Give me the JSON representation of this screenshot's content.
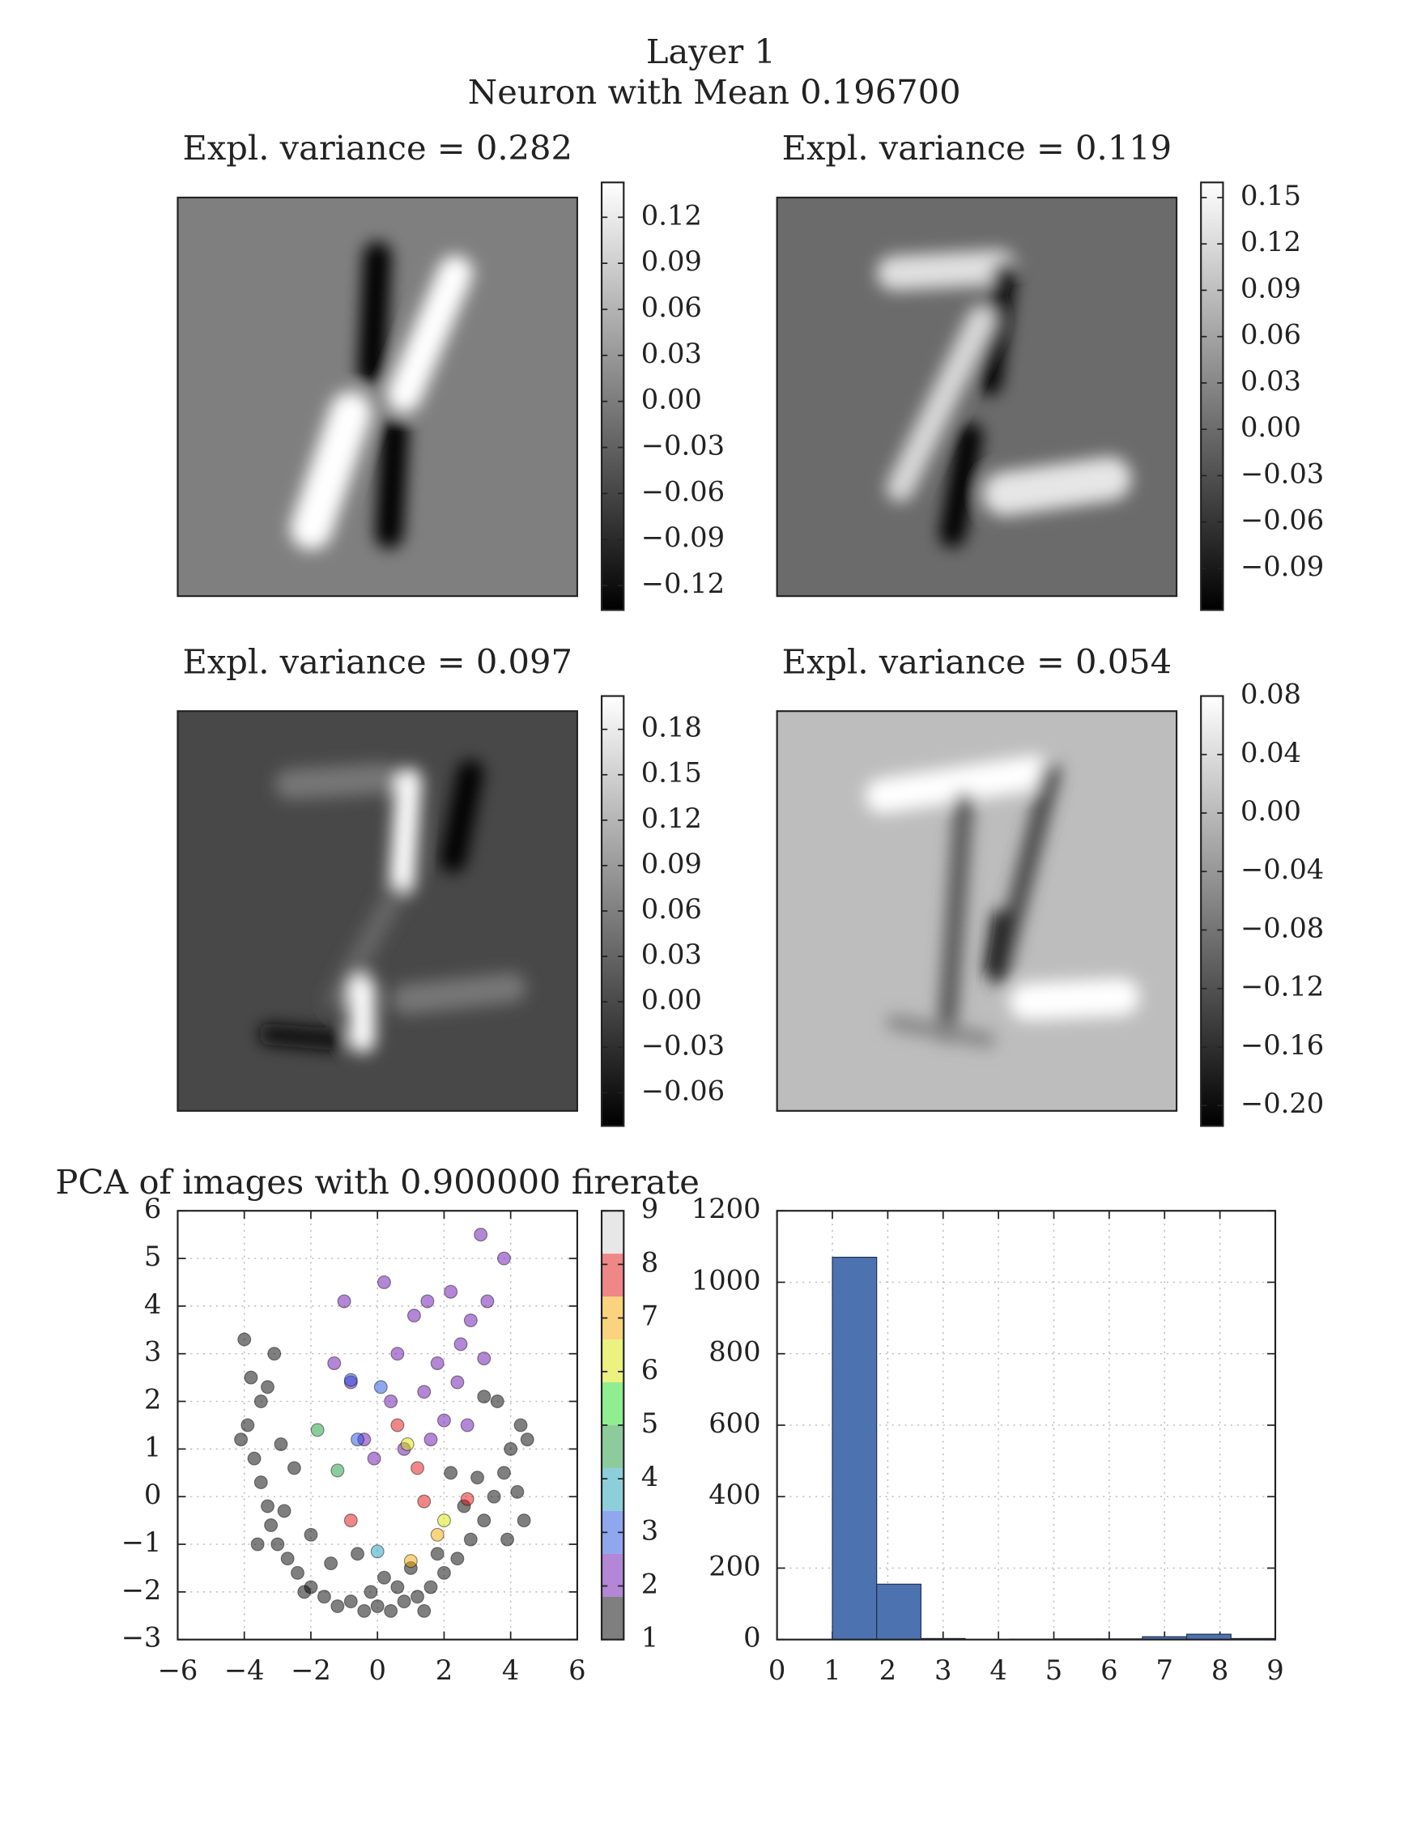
{
  "figure": {
    "title": "Layer 1",
    "subtitle": "Neuron with Mean 0.196700"
  },
  "chart_data": [
    {
      "type": "image",
      "title": "Expl. variance = 0.282",
      "clim": [
        -0.136,
        0.1427
      ],
      "cticks": [
        0.12,
        0.09,
        0.06,
        0.03,
        {
          "value": 0,
          "label": "0.00"
        },
        {
          "value": -0.03,
          "label": "−0.03"
        },
        {
          "value": -0.06,
          "label": "−0.06"
        },
        {
          "value": -0.09,
          "label": "−0.09"
        },
        {
          "value": -0.12,
          "label": "−0.12"
        }
      ]
    },
    {
      "type": "image",
      "title": "Expl. variance = 0.119",
      "clim": [
        -0.117,
        0.1598
      ],
      "cticks": [
        0.15,
        0.12,
        0.09,
        0.06,
        0.03,
        {
          "value": 0,
          "label": "0.00"
        },
        {
          "value": -0.03,
          "label": "−0.03"
        },
        {
          "value": -0.06,
          "label": "−0.06"
        },
        {
          "value": -0.09,
          "label": "−0.09"
        }
      ]
    },
    {
      "type": "image",
      "title": "Expl. variance = 0.097",
      "clim": [
        -0.082,
        0.202
      ],
      "cticks": [
        0.18,
        0.15,
        0.12,
        0.09,
        0.06,
        0.03,
        {
          "value": 0,
          "label": "0.00"
        },
        {
          "value": -0.03,
          "label": "−0.03"
        },
        {
          "value": -0.06,
          "label": "−0.06"
        }
      ]
    },
    {
      "type": "image",
      "title": "Expl. variance = 0.054",
      "clim": [
        -0.214,
        0.08
      ],
      "cticks": [
        0.08,
        0.04,
        {
          "value": 0,
          "label": "0.00"
        },
        {
          "value": -0.04,
          "label": "−0.04"
        },
        {
          "value": -0.08,
          "label": "−0.08"
        },
        {
          "value": -0.12,
          "label": "−0.12"
        },
        {
          "value": -0.16,
          "label": "−0.16"
        },
        {
          "value": -0.2,
          "label": "−0.20"
        }
      ]
    },
    {
      "type": "scatter",
      "title": "PCA of images with 0.900000 firerate",
      "grid": true,
      "xlim": [
        -6,
        6
      ],
      "ylim": [
        -3,
        6
      ],
      "xticks": [
        {
          "value": -6,
          "label": "−6"
        },
        {
          "value": -4,
          "label": "−4"
        },
        {
          "value": -2,
          "label": "−2"
        },
        0,
        2,
        4,
        6
      ],
      "yticks": [
        {
          "value": -3,
          "label": "−3"
        },
        {
          "value": -2,
          "label": "−2"
        },
        {
          "value": -1,
          "label": "−1"
        },
        0,
        1,
        2,
        3,
        4,
        5,
        6
      ],
      "colors": [
        "#000000",
        "#6a0dad",
        "#1f4fe0",
        "#1aa0b8",
        "#1a9a3a",
        "#22dd22",
        "#d8e600",
        "#f5a800",
        "#e01010",
        "#d0d0d0"
      ],
      "clim": [
        1,
        9
      ],
      "cticks": [
        1,
        2,
        3,
        4,
        5,
        6,
        7,
        8,
        9
      ],
      "x": [
        -4,
        -3.8,
        -3.5,
        -3.9,
        -4.1,
        -3.7,
        -3.5,
        -3.3,
        -3.2,
        -3.0,
        -2.7,
        -2.4,
        -2.0,
        -1.6,
        -1.2,
        -0.8,
        -0.4,
        0,
        0.4,
        0.8,
        1.2,
        1.6,
        2.0,
        2.4,
        2.8,
        3.2,
        3.5,
        3.8,
        4.0,
        4.3,
        4.5,
        3.6,
        3.2,
        -3.1,
        -3.3,
        -2.9,
        -2.5,
        -2.8,
        -2.0,
        -1.4,
        -0.6,
        0.2,
        1.0,
        1.8,
        2.6,
        3.0,
        4.2,
        4.4,
        3.9,
        2.2,
        -3.6,
        -2.2,
        1.4,
        -0.2,
        0.6,
        0.2,
        1.5,
        2.2,
        2.8,
        3.1,
        3.8,
        1.1,
        0.6,
        1.8,
        2.5,
        3.2,
        -1.3,
        -0.8,
        0.4,
        1.4,
        2.0,
        2.7,
        -0.4,
        0.8,
        -0.1,
        3.3,
        -1.0,
        1.6,
        2.4,
        -0.8,
        -0.6,
        0.1,
        0,
        -1.8,
        -1.2,
        0.9,
        2.0,
        1.0,
        1.8,
        -0.8,
        0.6,
        1.2,
        1.4,
        2.7
      ],
      "y": [
        3.3,
        2.5,
        2.0,
        1.5,
        1.2,
        0.8,
        0.3,
        -0.2,
        -0.6,
        -1.0,
        -1.3,
        -1.6,
        -1.9,
        -2.1,
        -2.3,
        -2.2,
        -2.4,
        -2.3,
        -2.4,
        -2.2,
        -2.1,
        -1.9,
        -1.6,
        -1.3,
        -0.9,
        -0.5,
        0,
        0.5,
        1.0,
        1.5,
        1.2,
        2.0,
        2.1,
        3.0,
        2.3,
        1.1,
        0.6,
        -0.3,
        -0.8,
        -1.4,
        -1.2,
        -1.7,
        -1.5,
        -1.2,
        -0.2,
        0.4,
        0.1,
        -0.5,
        -0.9,
        0.5,
        -1.0,
        -2.0,
        -2.4,
        -2.0,
        -1.9,
        4.5,
        4.1,
        4.3,
        3.7,
        5.5,
        5.0,
        3.8,
        3.0,
        2.8,
        3.2,
        2.9,
        2.8,
        2.4,
        2.0,
        2.2,
        1.6,
        1.5,
        1.2,
        1.0,
        0.8,
        4.1,
        4.1,
        1.2,
        2.4,
        2.45,
        1.2,
        2.3,
        -1.15,
        1.4,
        0.55,
        1.1,
        -0.5,
        -1.35,
        -0.8,
        -0.5,
        1.5,
        0.6,
        -0.1,
        -0.05
      ],
      "c": [
        0,
        0,
        0,
        0,
        0,
        0,
        0,
        0,
        0,
        0,
        0,
        0,
        0,
        0,
        0,
        0,
        0,
        0,
        0,
        0,
        0,
        0,
        0,
        0,
        0,
        0,
        0,
        0,
        0,
        0,
        0,
        0,
        0,
        0,
        0,
        0,
        0,
        0,
        0,
        0,
        0,
        0,
        0,
        0,
        0,
        0,
        0,
        0,
        0,
        0,
        0,
        0,
        0,
        0,
        0,
        1,
        1,
        1,
        1,
        1,
        1,
        1,
        1,
        1,
        1,
        1,
        1,
        1,
        1,
        1,
        1,
        1,
        1,
        1,
        1,
        1,
        1,
        1,
        1,
        2,
        2,
        2,
        3,
        4,
        4,
        6,
        6,
        7,
        7,
        8,
        8,
        8,
        8,
        8
      ]
    },
    {
      "type": "histogram",
      "grid": true,
      "color": "#4c72b0",
      "bins": [
        1,
        1.8,
        2.6,
        3.4,
        4.2,
        5,
        5.8,
        6.6,
        7.4,
        8.2,
        9
      ],
      "values": [
        1070,
        155,
        3,
        0,
        1,
        2,
        2,
        8,
        15,
        3
      ],
      "xlim": [
        0,
        9
      ],
      "ylim": [
        0,
        1200
      ],
      "xticks": [
        0,
        1,
        2,
        3,
        4,
        5,
        6,
        7,
        8,
        9
      ],
      "yticks": [
        0,
        200,
        400,
        600,
        800,
        1000,
        1200
      ]
    }
  ]
}
